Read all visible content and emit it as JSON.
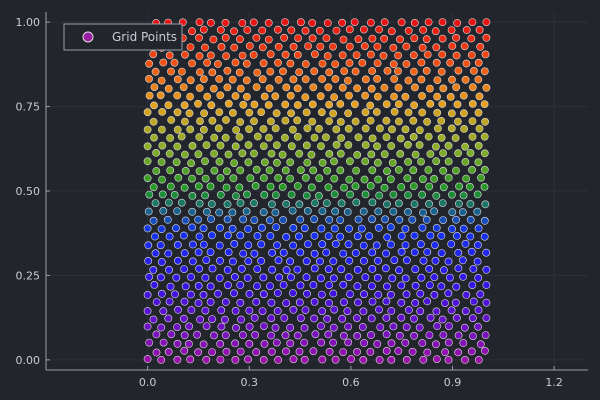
{
  "chart_data": {
    "type": "scatter",
    "title": "",
    "xlabel": "",
    "ylabel": "",
    "xlim": [
      -0.3,
      1.3
    ],
    "ylim": [
      -0.03,
      1.03
    ],
    "x_ticks": [
      {
        "value": 0.0,
        "label": "0.0"
      },
      {
        "value": 0.3,
        "label": "0.3"
      },
      {
        "value": 0.6,
        "label": "0.6"
      },
      {
        "value": 0.9,
        "label": "0.9"
      },
      {
        "value": 1.2,
        "label": "1.2"
      }
    ],
    "y_ticks": [
      {
        "value": 0.0,
        "label": "0.00"
      },
      {
        "value": 0.25,
        "label": "0.25"
      },
      {
        "value": 0.5,
        "label": "0.50"
      },
      {
        "value": 0.75,
        "label": "0.75"
      },
      {
        "value": 1.0,
        "label": "1.00"
      }
    ],
    "grid": true,
    "legend": {
      "position": "top-left",
      "entries": [
        "Grid Points"
      ]
    },
    "series": [
      {
        "name": "Grid Points",
        "description": "hexagonal-like lattice of points over the unit square [0,1]x[0,1], roughly 24 points per row and 42 rows",
        "x_range": [
          0.0,
          1.0
        ],
        "y_range": [
          0.0,
          1.0
        ],
        "columns": 24,
        "rows": 42,
        "colormap": "rainbow by y (0 = purple, 0.25 = blue, 0.5 = green, 0.75 = orange, 1 = red)"
      }
    ],
    "colors": {
      "background": "#22252c",
      "axis": "#9a9ea8",
      "grid": "#2c3038",
      "text": "#c8ccd4",
      "marker_edge": "#dcdcdc",
      "legend_marker": "#9b1fa6"
    }
  }
}
